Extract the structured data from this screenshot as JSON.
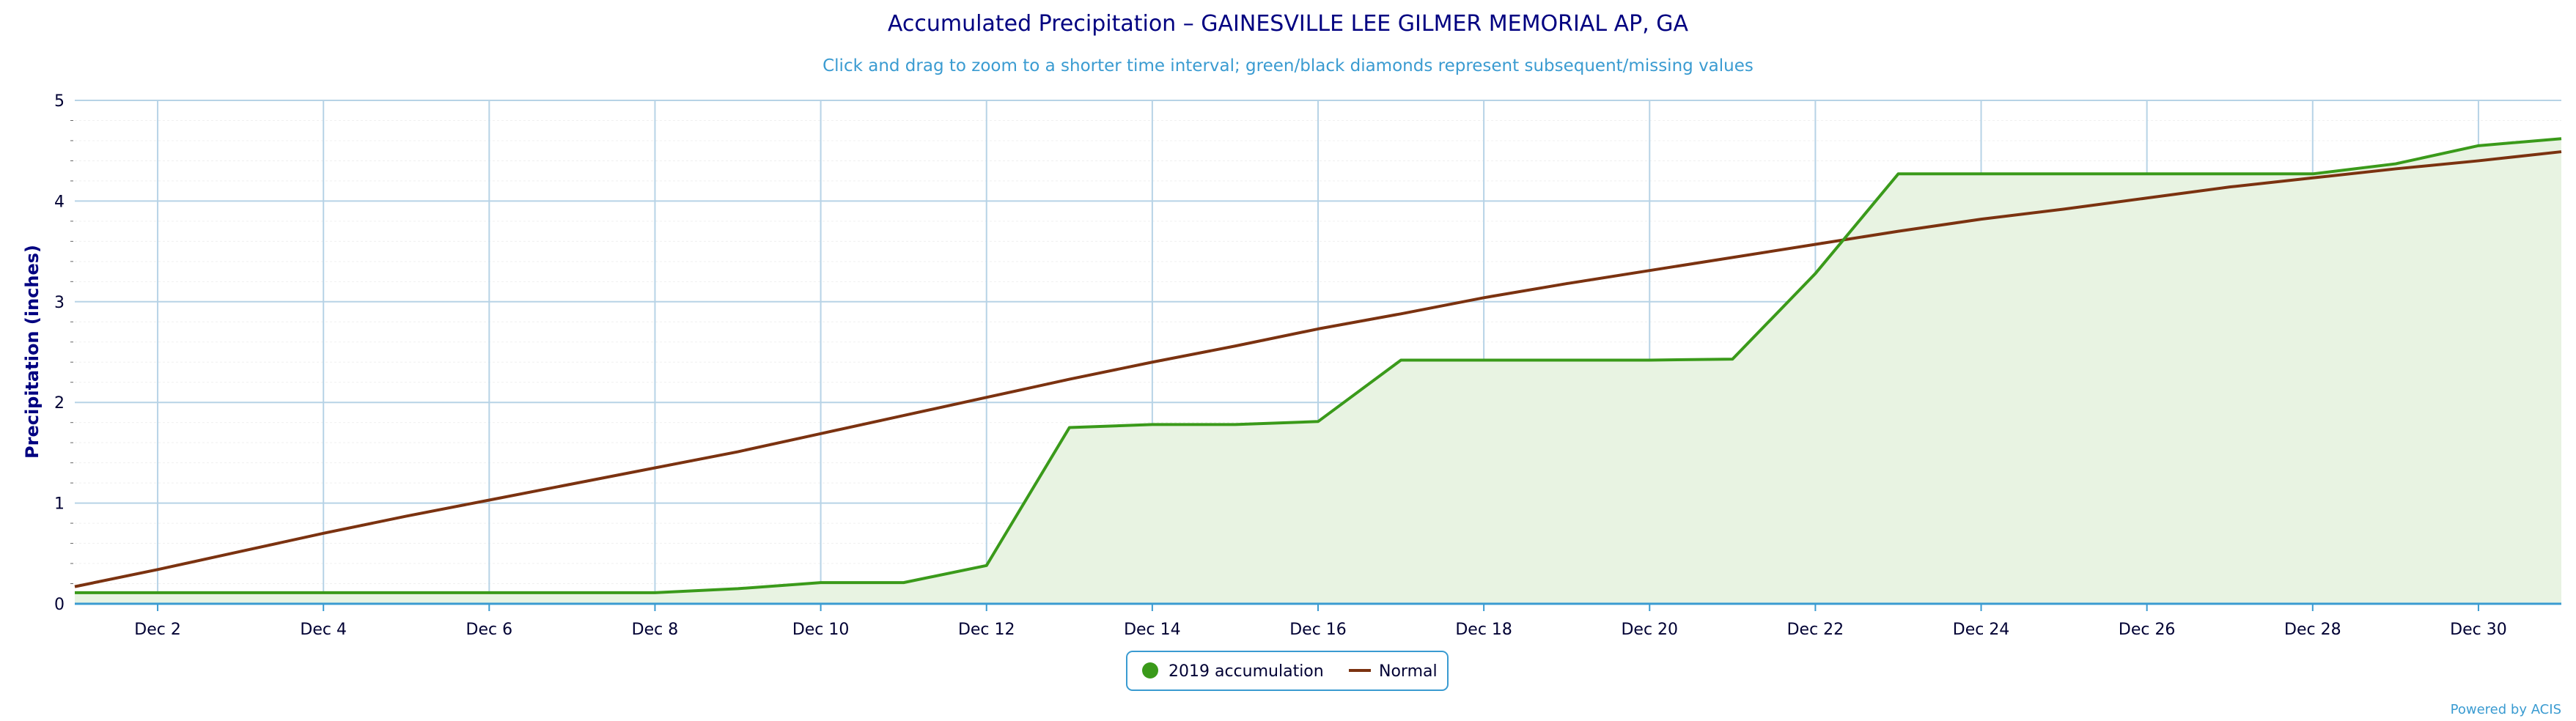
{
  "chart_data": {
    "type": "area",
    "title": "Accumulated Precipitation – GAINESVILLE LEE GILMER MEMORIAL AP, GA",
    "subtitle": "Click and drag to zoom to a shorter time interval; green/black diamonds represent subsequent/missing values",
    "ylabel": "Precipitation (inches)",
    "xlabel": "",
    "credits": "Powered by ACIS",
    "x": [
      1,
      2,
      3,
      4,
      5,
      6,
      7,
      8,
      9,
      10,
      11,
      12,
      13,
      14,
      15,
      16,
      17,
      18,
      19,
      20,
      21,
      22,
      23,
      24,
      25,
      26,
      27,
      28,
      29,
      30,
      31
    ],
    "x_ticks": [
      2,
      4,
      6,
      8,
      10,
      12,
      14,
      16,
      18,
      20,
      22,
      24,
      26,
      28,
      30
    ],
    "x_tick_labels": [
      "Dec 2",
      "Dec 4",
      "Dec 6",
      "Dec 8",
      "Dec 10",
      "Dec 12",
      "Dec 14",
      "Dec 16",
      "Dec 18",
      "Dec 20",
      "Dec 22",
      "Dec 24",
      "Dec 26",
      "Dec 28",
      "Dec 30"
    ],
    "xlim": [
      1,
      31
    ],
    "ylim": [
      0,
      5
    ],
    "y_ticks": [
      0,
      1,
      2,
      3,
      4,
      5
    ],
    "grid": true,
    "legend_position": "bottom-center",
    "series": [
      {
        "name": "2019 accumulation",
        "color": "#3a9a1a",
        "fill": "#e8f3e2",
        "values": [
          0.11,
          0.11,
          0.11,
          0.11,
          0.11,
          0.11,
          0.11,
          0.11,
          0.15,
          0.21,
          0.21,
          0.38,
          1.75,
          1.78,
          1.78,
          1.81,
          2.42,
          2.42,
          2.42,
          2.42,
          2.43,
          3.28,
          4.27,
          4.27,
          4.27,
          4.27,
          4.27,
          4.27,
          4.37,
          4.55,
          4.62
        ]
      },
      {
        "name": "Normal",
        "color": "#7b3210",
        "values": [
          0.17,
          0.34,
          0.52,
          0.7,
          0.87,
          1.03,
          1.19,
          1.35,
          1.51,
          1.69,
          1.87,
          2.05,
          2.23,
          2.4,
          2.56,
          2.73,
          2.88,
          3.04,
          3.18,
          3.31,
          3.44,
          3.57,
          3.7,
          3.82,
          3.92,
          4.03,
          4.14,
          4.23,
          4.32,
          4.4,
          4.49
        ]
      }
    ]
  }
}
